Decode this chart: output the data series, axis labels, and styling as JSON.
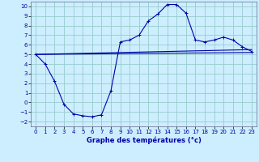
{
  "xlabel": "Graphe des températures (°c)",
  "xlim": [
    -0.5,
    23.5
  ],
  "ylim": [
    -2.5,
    10.5
  ],
  "yticks": [
    -2,
    -1,
    0,
    1,
    2,
    3,
    4,
    5,
    6,
    7,
    8,
    9,
    10
  ],
  "xticks": [
    0,
    1,
    2,
    3,
    4,
    5,
    6,
    7,
    8,
    9,
    10,
    11,
    12,
    13,
    14,
    15,
    16,
    17,
    18,
    19,
    20,
    21,
    22,
    23
  ],
  "bg_color": "#cceeff",
  "grid_color": "#99cccc",
  "line_color": "#0000aa",
  "curve1_x": [
    0,
    1,
    2,
    3,
    4,
    5,
    6,
    7,
    8,
    9,
    10,
    11,
    12,
    13,
    14,
    15,
    16,
    17,
    18,
    19,
    20,
    21,
    22,
    23
  ],
  "curve1_y": [
    5.0,
    4.0,
    2.2,
    -0.2,
    -1.2,
    -1.4,
    -1.5,
    -1.3,
    1.2,
    6.3,
    6.5,
    7.0,
    8.5,
    9.2,
    10.2,
    10.2,
    9.3,
    6.5,
    6.3,
    6.5,
    6.8,
    6.5,
    5.8,
    5.3
  ],
  "curve2_x": [
    0,
    23
  ],
  "curve2_y": [
    5.0,
    5.5
  ],
  "curve3_x": [
    0,
    23
  ],
  "curve3_y": [
    5.0,
    5.2
  ]
}
